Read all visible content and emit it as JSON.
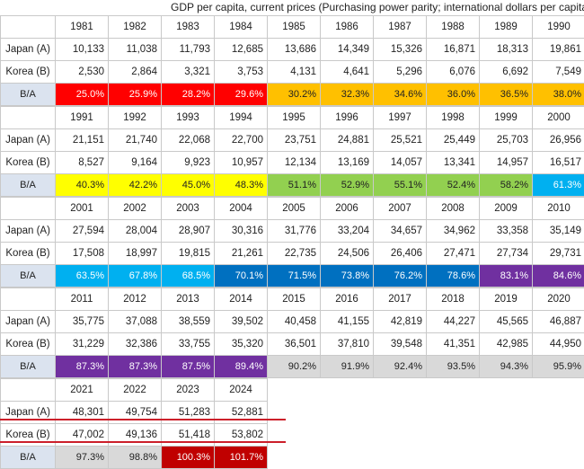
{
  "title": "GDP per capita, current prices (Purchasing power parity; international dollars per capita)",
  "row_labels": {
    "a": "Japan (A)",
    "b": "Korea (B)",
    "ratio": "B/A"
  },
  "colors": {
    "red": "#ff0000",
    "orange": "#ffc000",
    "yellow": "#ffff00",
    "green": "#92d050",
    "blue": "#00b0f0",
    "darkblue": "#0070c0",
    "purple": "#7030a0",
    "grey": "#d9d9d9",
    "darkred": "#c00000",
    "label_bg": "#dbe3ef",
    "underline": "#cc1f2a"
  },
  "blocks": [
    {
      "years": [
        "1981",
        "1982",
        "1983",
        "1984",
        "1985",
        "1986",
        "1987",
        "1988",
        "1989",
        "1990"
      ],
      "japan": [
        "10,133",
        "11,038",
        "11,793",
        "12,685",
        "13,686",
        "14,349",
        "15,326",
        "16,871",
        "18,313",
        "19,861"
      ],
      "korea": [
        "2,530",
        "2,864",
        "3,321",
        "3,753",
        "4,131",
        "4,641",
        "5,296",
        "6,076",
        "6,692",
        "7,549"
      ],
      "ratio": [
        "25.0%",
        "25.9%",
        "28.2%",
        "29.6%",
        "30.2%",
        "32.3%",
        "34.6%",
        "36.0%",
        "36.5%",
        "38.0%"
      ],
      "ratio_color": [
        "red",
        "red",
        "red",
        "red",
        "orange",
        "orange",
        "orange",
        "orange",
        "orange",
        "orange"
      ]
    },
    {
      "years": [
        "1991",
        "1992",
        "1993",
        "1994",
        "1995",
        "1996",
        "1997",
        "1998",
        "1999",
        "2000"
      ],
      "japan": [
        "21,151",
        "21,740",
        "22,068",
        "22,700",
        "23,751",
        "24,881",
        "25,521",
        "25,449",
        "25,703",
        "26,956"
      ],
      "korea": [
        "8,527",
        "9,164",
        "9,923",
        "10,957",
        "12,134",
        "13,169",
        "14,057",
        "13,341",
        "14,957",
        "16,517"
      ],
      "ratio": [
        "40.3%",
        "42.2%",
        "45.0%",
        "48.3%",
        "51.1%",
        "52.9%",
        "55.1%",
        "52.4%",
        "58.2%",
        "61.3%"
      ],
      "ratio_color": [
        "yellow",
        "yellow",
        "yellow",
        "yellow",
        "green",
        "green",
        "green",
        "green",
        "green",
        "blue"
      ]
    },
    {
      "years": [
        "2001",
        "2002",
        "2003",
        "2004",
        "2005",
        "2006",
        "2007",
        "2008",
        "2009",
        "2010"
      ],
      "japan": [
        "27,594",
        "28,004",
        "28,907",
        "30,316",
        "31,776",
        "33,204",
        "34,657",
        "34,962",
        "33,358",
        "35,149"
      ],
      "korea": [
        "17,508",
        "18,997",
        "19,815",
        "21,261",
        "22,735",
        "24,506",
        "26,406",
        "27,471",
        "27,734",
        "29,731"
      ],
      "ratio": [
        "63.5%",
        "67.8%",
        "68.5%",
        "70.1%",
        "71.5%",
        "73.8%",
        "76.2%",
        "78.6%",
        "83.1%",
        "84.6%"
      ],
      "ratio_color": [
        "blue",
        "blue",
        "blue",
        "darkblue",
        "darkblue",
        "darkblue",
        "darkblue",
        "darkblue",
        "purple",
        "purple"
      ]
    },
    {
      "years": [
        "2011",
        "2012",
        "2013",
        "2014",
        "2015",
        "2016",
        "2017",
        "2018",
        "2019",
        "2020"
      ],
      "japan": [
        "35,775",
        "37,088",
        "38,559",
        "39,502",
        "40,458",
        "41,155",
        "42,819",
        "44,227",
        "45,565",
        "46,887"
      ],
      "korea": [
        "31,229",
        "32,386",
        "33,755",
        "35,320",
        "36,501",
        "37,810",
        "39,548",
        "41,351",
        "42,985",
        "44,950"
      ],
      "ratio": [
        "87.3%",
        "87.3%",
        "87.5%",
        "89.4%",
        "90.2%",
        "91.9%",
        "92.4%",
        "93.5%",
        "94.3%",
        "95.9%"
      ],
      "ratio_color": [
        "purple",
        "purple",
        "purple",
        "purple",
        "grey",
        "grey",
        "grey",
        "grey",
        "grey",
        "grey"
      ]
    },
    {
      "years": [
        "2021",
        "2022",
        "2023",
        "2024"
      ],
      "japan": [
        "48,301",
        "49,754",
        "51,283",
        "52,881"
      ],
      "korea": [
        "47,002",
        "49,136",
        "51,418",
        "53,802"
      ],
      "ratio": [
        "97.3%",
        "98.8%",
        "100.3%",
        "101.7%"
      ],
      "ratio_color": [
        "grey",
        "grey",
        "darkred",
        "darkred"
      ]
    }
  ]
}
